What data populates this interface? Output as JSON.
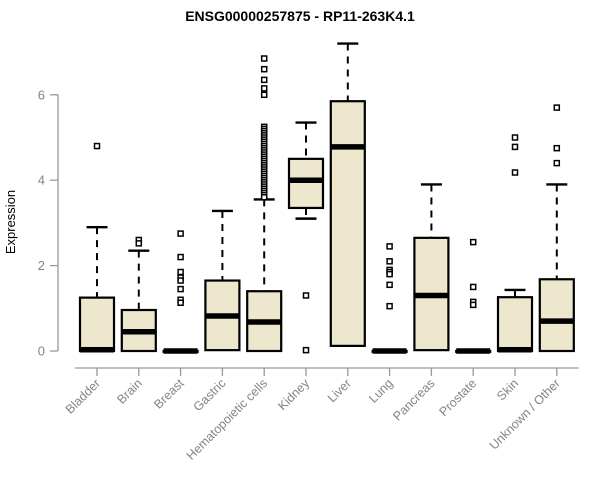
{
  "chart_data": {
    "type": "boxplot",
    "title": "ENSG00000257875 - RP11-263K4.1",
    "ylabel": "Expression",
    "xlabel": "",
    "yticks": [
      0,
      2,
      4,
      6
    ],
    "ylim": [
      -0.15,
      7.35
    ],
    "grid": false,
    "legend": "none",
    "categories": [
      "Bladder",
      "Brain",
      "Breast",
      "Gastric",
      "Hematopoietic cells",
      "Kidney",
      "Liver",
      "Lung",
      "Pancreas",
      "Prostate",
      "Skin",
      "Unknown / Other"
    ],
    "boxes": [
      {
        "name": "Bladder",
        "whisker_low": 0,
        "q1": 0,
        "median": 0.03,
        "q3": 1.25,
        "whisker_high": 2.9,
        "outliers": [
          4.8
        ]
      },
      {
        "name": "Brain",
        "whisker_low": 0,
        "q1": 0,
        "median": 0.45,
        "q3": 0.96,
        "whisker_high": 2.35,
        "outliers": [
          2.6,
          2.52
        ]
      },
      {
        "name": "Breast",
        "whisker_low": 0,
        "q1": 0,
        "median": 0,
        "q3": 0,
        "whisker_high": 0,
        "outliers": [
          2.75,
          2.2,
          1.85,
          1.72,
          1.65,
          1.45,
          1.2,
          1.13
        ]
      },
      {
        "name": "Gastric",
        "whisker_low": 0.02,
        "q1": 0.02,
        "median": 0.82,
        "q3": 1.65,
        "whisker_high": 3.28,
        "outliers": []
      },
      {
        "name": "Hematopoietic cells",
        "whisker_low": 0,
        "q1": 0,
        "median": 0.68,
        "q3": 1.4,
        "whisker_high": 3.55,
        "outliers": [
          6.85,
          6.6,
          6.35,
          6.15,
          6.0,
          5.25,
          5.2,
          5.15,
          5.1,
          5.05,
          5.0,
          4.95,
          4.9,
          4.85,
          4.8,
          4.75,
          4.7,
          4.65,
          4.6,
          4.55,
          4.5,
          4.45,
          4.4,
          4.35,
          4.3,
          4.25,
          4.2,
          4.15,
          4.1,
          4.05,
          4.0,
          3.95,
          3.9,
          3.85,
          3.8,
          3.75,
          3.7,
          3.65,
          3.6
        ]
      },
      {
        "name": "Kidney",
        "whisker_low": 3.1,
        "q1": 3.35,
        "median": 4.0,
        "q3": 4.5,
        "whisker_high": 5.35,
        "outliers": [
          1.3,
          0.02
        ]
      },
      {
        "name": "Liver",
        "whisker_low": 0.12,
        "q1": 0.12,
        "median": 4.78,
        "q3": 5.85,
        "whisker_high": 7.2,
        "outliers": []
      },
      {
        "name": "Lung",
        "whisker_low": 0,
        "q1": 0,
        "median": 0,
        "q3": 0,
        "whisker_high": 0,
        "outliers": [
          2.45,
          2.1,
          1.9,
          1.85,
          1.8,
          1.55,
          1.05
        ]
      },
      {
        "name": "Pancreas",
        "whisker_low": 0.02,
        "q1": 0.02,
        "median": 1.3,
        "q3": 2.65,
        "whisker_high": 3.9,
        "outliers": []
      },
      {
        "name": "Prostate",
        "whisker_low": 0,
        "q1": 0,
        "median": 0,
        "q3": 0,
        "whisker_high": 0,
        "outliers": [
          2.55,
          1.5,
          1.15,
          1.08
        ]
      },
      {
        "name": "Skin",
        "whisker_low": 0,
        "q1": 0,
        "median": 0.03,
        "q3": 1.26,
        "whisker_high": 1.43,
        "outliers": [
          5.0,
          4.78,
          4.18
        ]
      },
      {
        "name": "Unknown / Other",
        "whisker_low": 0,
        "q1": 0,
        "median": 0.7,
        "q3": 1.68,
        "whisker_high": 3.9,
        "outliers": [
          5.7,
          4.75,
          4.4
        ]
      }
    ],
    "colors": {
      "box_fill": "#ede7cd",
      "box_border": "#000000",
      "median": "#000000",
      "whisker": "#000000",
      "outlier_stroke": "#000000",
      "outlier_fill": "#ffffff",
      "axis_line": "#999999",
      "axis_text": "#848484",
      "title": "#000000",
      "background": "#ffffff"
    }
  }
}
